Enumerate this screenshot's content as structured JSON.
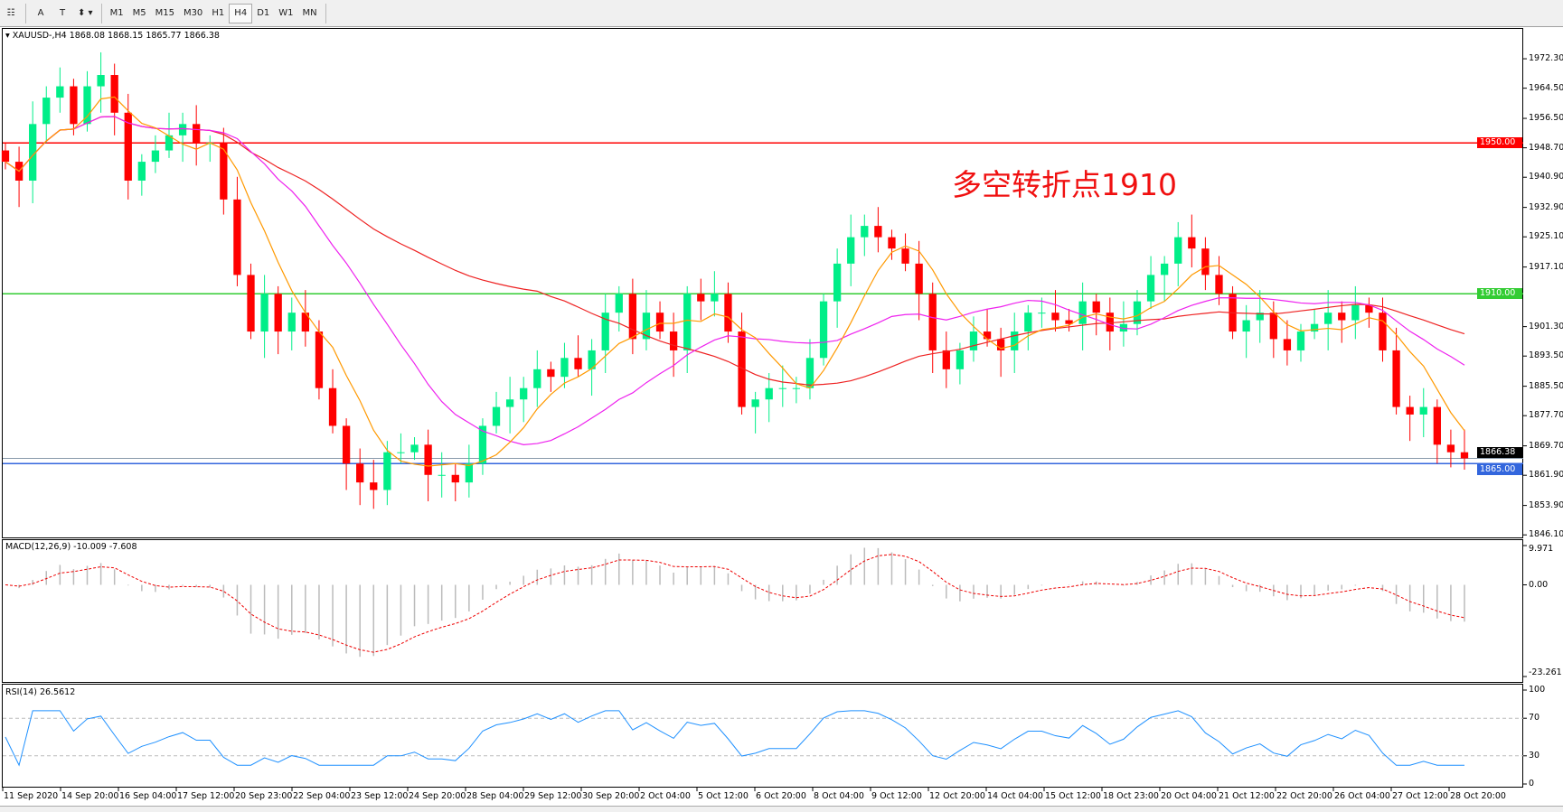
{
  "toolbar": {
    "tools": [
      "A",
      "T"
    ],
    "timeframes": [
      "M1",
      "M5",
      "M15",
      "M30",
      "H1",
      "H4",
      "D1",
      "W1",
      "MN"
    ],
    "selected": "H4"
  },
  "chart": {
    "header": "XAUUSD-,H4  1868.08 1868.15 1865.77 1866.38",
    "annotation": "多空转折点1910",
    "price_axis": [
      "1972.30",
      "1964.50",
      "1956.50",
      "1948.70",
      "1940.90",
      "1932.90",
      "1925.10",
      "1917.10",
      "1901.30",
      "1893.50",
      "1885.50",
      "1877.70",
      "1869.70",
      "1861.90",
      "1853.90",
      "1846.10"
    ],
    "levels": [
      {
        "label": "1950.00",
        "value": 1950,
        "color": "#ff0000"
      },
      {
        "label": "1910.00",
        "value": 1910,
        "color": "#33cc33"
      },
      {
        "label": "1865.00",
        "value": 1865,
        "color": "#3366dd"
      }
    ],
    "bid": {
      "label": "1866.38",
      "value": 1866.38
    },
    "colors": {
      "bull": "#00ee88",
      "bear": "#ff0000",
      "ma_slow": "#ee2222",
      "ma_mid": "#ee22ee",
      "ma_fast": "#ff9900"
    },
    "closes": [
      1945,
      1940,
      1955,
      1962,
      1965,
      1955,
      1965,
      1968,
      1958,
      1940,
      1945,
      1948,
      1952,
      1955,
      1950,
      1950,
      1935,
      1915,
      1900,
      1910,
      1900,
      1905,
      1900,
      1885,
      1875,
      1865,
      1860,
      1858,
      1868,
      1868,
      1870,
      1862,
      1862,
      1860,
      1865,
      1875,
      1880,
      1882,
      1885,
      1890,
      1888,
      1893,
      1890,
      1895,
      1905,
      1910,
      1898,
      1905,
      1900,
      1895,
      1910,
      1908,
      1910,
      1900,
      1880,
      1882,
      1885,
      1885,
      1885,
      1893,
      1908,
      1918,
      1925,
      1928,
      1925,
      1922,
      1918,
      1910,
      1895,
      1890,
      1895,
      1900,
      1898,
      1895,
      1900,
      1905,
      1905,
      1903,
      1902,
      1908,
      1905,
      1900,
      1902,
      1908,
      1915,
      1918,
      1925,
      1922,
      1915,
      1910,
      1900,
      1903,
      1905,
      1898,
      1895,
      1900,
      1902,
      1905,
      1903,
      1907,
      1905,
      1895,
      1880,
      1878,
      1880,
      1870,
      1868,
      1866.38
    ]
  },
  "macd": {
    "label": "MACD(12,26,9) -10.009 -7.608",
    "axis": [
      "9.971",
      "0.00",
      "-23.261"
    ]
  },
  "rsi": {
    "label": "RSI(14) 26.5612",
    "axis": [
      "100",
      "70",
      "30",
      "0"
    ]
  },
  "time_axis": [
    "11 Sep 2020",
    "14 Sep 20:00",
    "16 Sep 04:00",
    "17 Sep 12:00",
    "20 Sep 23:00",
    "22 Sep 04:00",
    "23 Sep 12:00",
    "24 Sep 20:00",
    "28 Sep 04:00",
    "29 Sep 12:00",
    "30 Sep 20:00",
    "2 Oct 04:00",
    "5 Oct 12:00",
    "6 Oct 20:00",
    "8 Oct 04:00",
    "9 Oct 12:00",
    "12 Oct 20:00",
    "14 Oct 04:00",
    "15 Oct 12:00",
    "18 Oct 23:00",
    "20 Oct 04:00",
    "21 Oct 12:00",
    "22 Oct 20:00",
    "26 Oct 04:00",
    "27 Oct 12:00",
    "28 Oct 20:00"
  ]
}
